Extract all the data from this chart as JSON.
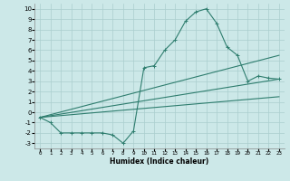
{
  "xlabel": "Humidex (Indice chaleur)",
  "ylabel": "",
  "background_color": "#cce8e8",
  "grid_color": "#aacece",
  "line_color": "#2e7d6e",
  "xlim": [
    -0.5,
    23.5
  ],
  "ylim": [
    -3.5,
    10.5
  ],
  "x_ticks": [
    0,
    1,
    2,
    3,
    4,
    5,
    6,
    7,
    8,
    9,
    10,
    11,
    12,
    13,
    14,
    15,
    16,
    17,
    18,
    19,
    20,
    21,
    22,
    23
  ],
  "y_ticks": [
    -3,
    -2,
    -1,
    0,
    1,
    2,
    3,
    4,
    5,
    6,
    7,
    8,
    9,
    10
  ],
  "series": [
    {
      "x": [
        0,
        1,
        2,
        3,
        4,
        5,
        6,
        7,
        8,
        9,
        10,
        11,
        12,
        13,
        14,
        15,
        16,
        17,
        18,
        19,
        20,
        21,
        22,
        23
      ],
      "y": [
        -0.5,
        -1.0,
        -2.0,
        -2.0,
        -2.0,
        -2.0,
        -2.0,
        -2.2,
        -3.0,
        -1.8,
        4.3,
        4.5,
        6.0,
        7.0,
        8.8,
        9.7,
        10.0,
        8.6,
        6.3,
        5.5,
        3.0,
        3.5,
        3.3,
        3.2
      ]
    },
    {
      "x": [
        0,
        23
      ],
      "y": [
        -0.5,
        5.5
      ]
    },
    {
      "x": [
        0,
        23
      ],
      "y": [
        -0.5,
        3.2
      ]
    },
    {
      "x": [
        0,
        23
      ],
      "y": [
        -0.5,
        1.5
      ]
    }
  ]
}
